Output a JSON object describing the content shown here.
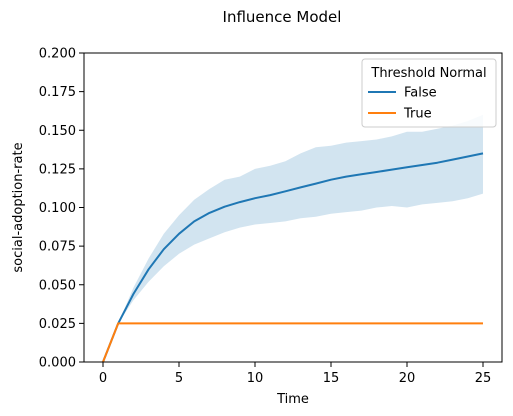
{
  "chart_data": {
    "type": "line",
    "title": "Influence Model",
    "xlabel": "Time",
    "ylabel": "social-adoption-rate",
    "xlim": [
      -1.25,
      26.25
    ],
    "ylim": [
      0,
      0.2
    ],
    "xticks": [
      0,
      5,
      10,
      15,
      20,
      25
    ],
    "xtick_labels": [
      "0",
      "5",
      "10",
      "15",
      "20",
      "25"
    ],
    "yticks": [
      0,
      0.025,
      0.05,
      0.075,
      0.1,
      0.125,
      0.15,
      0.175,
      0.2
    ],
    "ytick_labels": [
      "0.000",
      "0.025",
      "0.050",
      "0.075",
      "0.100",
      "0.125",
      "0.150",
      "0.175",
      "0.200"
    ],
    "grid": false,
    "legend": {
      "title": "Threshold Normal",
      "placement": "top-right"
    },
    "x": [
      0,
      1,
      2,
      3,
      4,
      5,
      6,
      7,
      8,
      9,
      10,
      11,
      12,
      13,
      14,
      15,
      16,
      17,
      18,
      19,
      20,
      21,
      22,
      23,
      24,
      25
    ],
    "series": [
      {
        "name": "False",
        "color": "#1f77b4",
        "values": [
          0.0,
          0.025,
          0.044,
          0.06,
          0.073,
          0.083,
          0.091,
          0.0965,
          0.1005,
          0.1035,
          0.106,
          0.108,
          0.1105,
          0.113,
          0.1155,
          0.118,
          0.12,
          0.1215,
          0.123,
          0.1245,
          0.126,
          0.1275,
          0.129,
          0.131,
          0.133,
          0.135
        ],
        "ci_lower": [
          0.0,
          0.025,
          0.04,
          0.052,
          0.062,
          0.07,
          0.076,
          0.08,
          0.084,
          0.087,
          0.089,
          0.09,
          0.091,
          0.093,
          0.094,
          0.096,
          0.097,
          0.098,
          0.1,
          0.101,
          0.1,
          0.102,
          0.103,
          0.104,
          0.106,
          0.109
        ],
        "ci_upper": [
          0.0,
          0.025,
          0.048,
          0.067,
          0.083,
          0.095,
          0.105,
          0.112,
          0.118,
          0.12,
          0.125,
          0.127,
          0.13,
          0.135,
          0.139,
          0.14,
          0.142,
          0.143,
          0.144,
          0.146,
          0.149,
          0.149,
          0.151,
          0.153,
          0.156,
          0.16
        ]
      },
      {
        "name": "True",
        "color": "#ff7f0e",
        "values": [
          0.0,
          0.025,
          0.025,
          0.025,
          0.025,
          0.025,
          0.025,
          0.025,
          0.025,
          0.025,
          0.025,
          0.025,
          0.025,
          0.025,
          0.025,
          0.025,
          0.025,
          0.025,
          0.025,
          0.025,
          0.025,
          0.025,
          0.025,
          0.025,
          0.025,
          0.025
        ]
      }
    ]
  }
}
